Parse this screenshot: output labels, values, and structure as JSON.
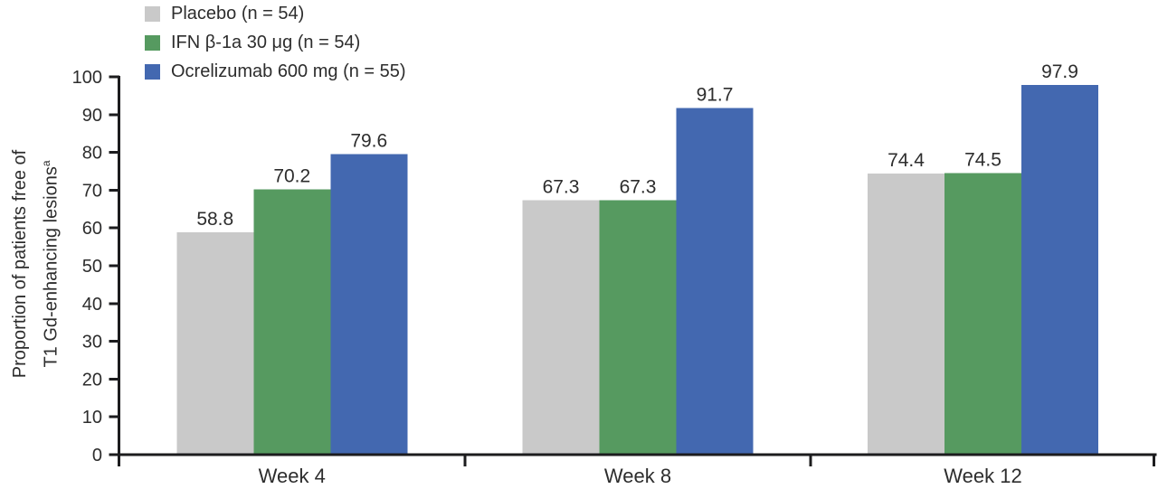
{
  "figure": {
    "y_axis_title_line1": "Proportion of patients free of",
    "y_axis_title_line2": "T1 Gd-enhancing lesions",
    "y_axis_title_superscript": "a"
  },
  "colors": {
    "axis": "#1c1c1e",
    "text": "#2d2d2d",
    "background": "#ffffff",
    "placebo": "#c9c9c9",
    "ifn": "#569a60",
    "ocrelizumab": "#4368b0"
  },
  "chart_data": {
    "type": "bar",
    "title": "",
    "categories": [
      "Week 4",
      "Week 8",
      "Week 12"
    ],
    "series": [
      {
        "name": "Placebo (n = 54)",
        "color": "#c9c9c9",
        "values": [
          58.8,
          67.3,
          74.4
        ]
      },
      {
        "name": "IFN β-1a 30 μg (n = 54)",
        "color": "#569a60",
        "values": [
          70.2,
          67.3,
          74.5
        ]
      },
      {
        "name": "Ocrelizumab 600 mg (n = 55)",
        "color": "#4368b0",
        "values": [
          79.6,
          91.7,
          97.9
        ]
      }
    ],
    "xlabel": "",
    "ylabel": "Proportion of patients free of T1 Gd-enhancing lesionsᵃ",
    "ylim": [
      0,
      100
    ],
    "yticks": [
      0,
      10,
      20,
      30,
      40,
      50,
      60,
      70,
      80,
      90,
      100
    ],
    "grid": false,
    "legend_position": "top-left",
    "value_labels": true,
    "value_label_format": "one-decimal"
  }
}
